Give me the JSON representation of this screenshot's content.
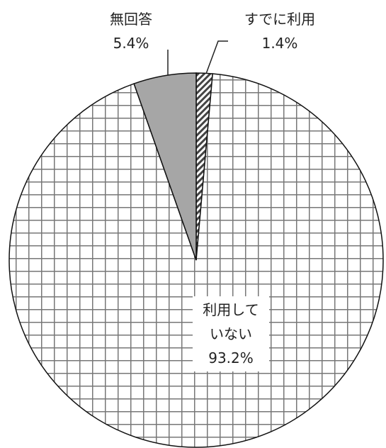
{
  "chart_data": {
    "type": "pie",
    "categories": [
      "すでに利用",
      "利用していない",
      "無回答"
    ],
    "values": [
      1.4,
      93.2,
      5.4
    ],
    "value_labels": [
      "1.4%",
      "93.2%",
      "5.4%"
    ],
    "colors": [
      "#444444",
      "#777777",
      "#a6a6a6"
    ]
  }
}
